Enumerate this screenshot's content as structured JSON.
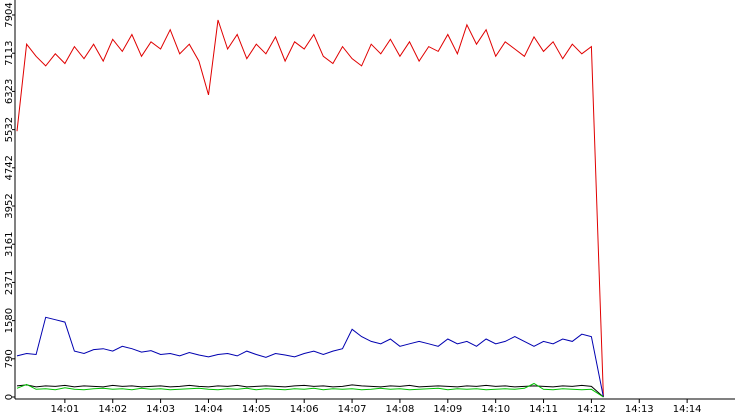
{
  "chart_data": {
    "type": "line",
    "x": [
      0,
      0.2,
      0.4,
      0.6,
      0.8,
      1.0,
      1.2,
      1.4,
      1.6,
      1.8,
      2.0,
      2.2,
      2.4,
      2.6,
      2.8,
      3.0,
      3.2,
      3.4,
      3.6,
      3.8,
      4.0,
      4.2,
      4.4,
      4.6,
      4.8,
      5.0,
      5.2,
      5.4,
      5.6,
      5.8,
      6.0,
      6.2,
      6.4,
      6.6,
      6.8,
      7.0,
      7.2,
      7.4,
      7.6,
      7.8,
      8.0,
      8.2,
      8.4,
      8.6,
      8.8,
      9.0,
      9.2,
      9.4,
      9.6,
      9.8,
      10.0,
      10.2,
      10.4,
      10.6,
      10.8,
      11.0,
      11.2,
      11.4,
      11.6,
      11.8,
      12.0,
      12.25
    ],
    "series": [
      {
        "color": "#e00000",
        "values": [
          5500,
          7300,
          7050,
          6850,
          7100,
          6900,
          7250,
          7000,
          7300,
          6950,
          7400,
          7150,
          7500,
          7050,
          7350,
          7200,
          7600,
          7100,
          7300,
          6950,
          6250,
          7800,
          7200,
          7500,
          7000,
          7300,
          7100,
          7450,
          6950,
          7350,
          7200,
          7500,
          7050,
          6900,
          7250,
          7000,
          6850,
          7300,
          7100,
          7400,
          7050,
          7350,
          6950,
          7250,
          7150,
          7500,
          7100,
          7700,
          7300,
          7600,
          7050,
          7350,
          7200,
          7050,
          7450,
          7150,
          7350,
          7000,
          7300,
          7100,
          7250,
          0
        ]
      },
      {
        "color": "#0000b0",
        "values": [
          850,
          900,
          880,
          1650,
          1600,
          1550,
          950,
          900,
          980,
          1000,
          950,
          1050,
          1000,
          930,
          960,
          880,
          900,
          850,
          920,
          870,
          830,
          880,
          900,
          850,
          950,
          880,
          820,
          900,
          870,
          830,
          900,
          950,
          880,
          950,
          1000,
          1400,
          1250,
          1150,
          1100,
          1200,
          1050,
          1100,
          1150,
          1100,
          1050,
          1200,
          1100,
          1150,
          1050,
          1200,
          1100,
          1150,
          1250,
          1150,
          1050,
          1150,
          1100,
          1200,
          1150,
          1300,
          1250,
          0
        ]
      },
      {
        "color": "#000000",
        "values": [
          230,
          250,
          210,
          230,
          220,
          240,
          210,
          230,
          220,
          210,
          240,
          220,
          230,
          210,
          220,
          230,
          210,
          220,
          240,
          220,
          210,
          230,
          220,
          240,
          210,
          220,
          230,
          220,
          210,
          230,
          240,
          220,
          230,
          210,
          220,
          250,
          230,
          220,
          210,
          230,
          220,
          240,
          210,
          220,
          230,
          220,
          210,
          230,
          220,
          240,
          220,
          230,
          210,
          220,
          230,
          220,
          210,
          230,
          220,
          240,
          220,
          0
        ]
      },
      {
        "color": "#00c000",
        "values": [
          180,
          260,
          160,
          170,
          150,
          190,
          160,
          150,
          170,
          180,
          160,
          170,
          150,
          180,
          160,
          170,
          150,
          160,
          170,
          180,
          160,
          150,
          170,
          160,
          180,
          150,
          170,
          160,
          150,
          170,
          160,
          180,
          150,
          170,
          160,
          170,
          150,
          160,
          180,
          160,
          170,
          150,
          160,
          170,
          180,
          150,
          170,
          160,
          170,
          150,
          160,
          170,
          160,
          180,
          280,
          160,
          150,
          170,
          160,
          150,
          160,
          0
        ]
      }
    ],
    "xlim": [
      0,
      15
    ],
    "ylim": [
      0,
      8214
    ],
    "xticks": [
      {
        "value": 1,
        "label": "14:01"
      },
      {
        "value": 2,
        "label": "14:02"
      },
      {
        "value": 3,
        "label": "14:03"
      },
      {
        "value": 4,
        "label": "14:04"
      },
      {
        "value": 5,
        "label": "14:05"
      },
      {
        "value": 6,
        "label": "14:06"
      },
      {
        "value": 7,
        "label": "14:07"
      },
      {
        "value": 8,
        "label": "14:08"
      },
      {
        "value": 9,
        "label": "14:09"
      },
      {
        "value": 10,
        "label": "14:10"
      },
      {
        "value": 11,
        "label": "14:11"
      },
      {
        "value": 12,
        "label": "14:12"
      },
      {
        "value": 13,
        "label": "14:13"
      },
      {
        "value": 14,
        "label": "14:14"
      }
    ],
    "yticks": [
      0,
      790,
      1580,
      2371,
      3161,
      3952,
      4742,
      5532,
      6323,
      7113,
      7904
    ]
  }
}
